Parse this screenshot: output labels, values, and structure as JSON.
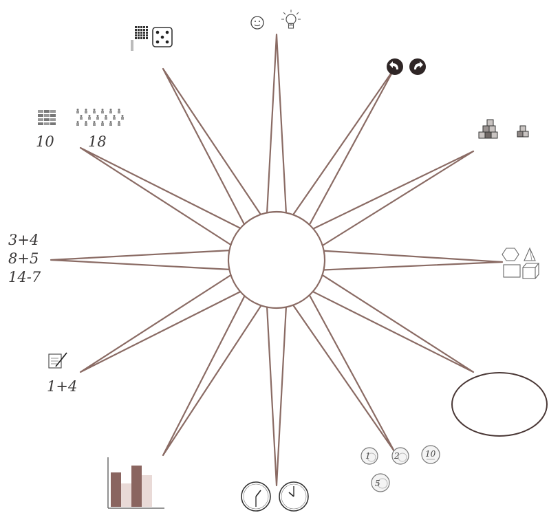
{
  "colors": {
    "ray": "#8a6b64",
    "outline": "#6e5852",
    "ink": "#3a3838",
    "bar_dark": "#8a6560",
    "bar_light": "#e9dad7"
  },
  "center_circle": {
    "label": ""
  },
  "rays": [
    {
      "name": "ray-top",
      "icons": [
        "smiley-icon",
        "lightbulb-icon"
      ]
    },
    {
      "name": "ray-top-right",
      "icons": [
        "undo-arrow-icon",
        "redo-arrow-icon"
      ]
    },
    {
      "name": "ray-right-upper",
      "icons": [
        "cube-staircase-icon",
        "small-cube-stack-icon"
      ]
    },
    {
      "name": "ray-right",
      "icons": [
        "hexagon-icon",
        "pyramid-icon",
        "rectangle-icon",
        "cube-icon"
      ]
    },
    {
      "name": "ray-right-lower",
      "icons": [
        "empty-oval"
      ]
    },
    {
      "name": "ray-bottom-right",
      "icons": [
        "coin-icon"
      ]
    },
    {
      "name": "ray-bottom",
      "icons": [
        "clock-icon"
      ]
    },
    {
      "name": "ray-bottom-left",
      "icons": [
        "bar-chart-icon"
      ]
    },
    {
      "name": "ray-left-lower",
      "icons": [
        "writing-pad-icon"
      ]
    },
    {
      "name": "ray-left",
      "icons": []
    },
    {
      "name": "ray-left-upper",
      "icons": [
        "counting-blocks-icon",
        "people-group-icon"
      ]
    },
    {
      "name": "ray-top-left",
      "icons": [
        "hundred-grid-icon",
        "dice-icon"
      ]
    }
  ],
  "labels": {
    "blocks_count": "10",
    "people_count": "18",
    "equations": [
      "3+4",
      "8+5",
      "14-7"
    ],
    "pad_sum": "1+4"
  },
  "coins": [
    "1",
    "2",
    "10",
    "5"
  ]
}
